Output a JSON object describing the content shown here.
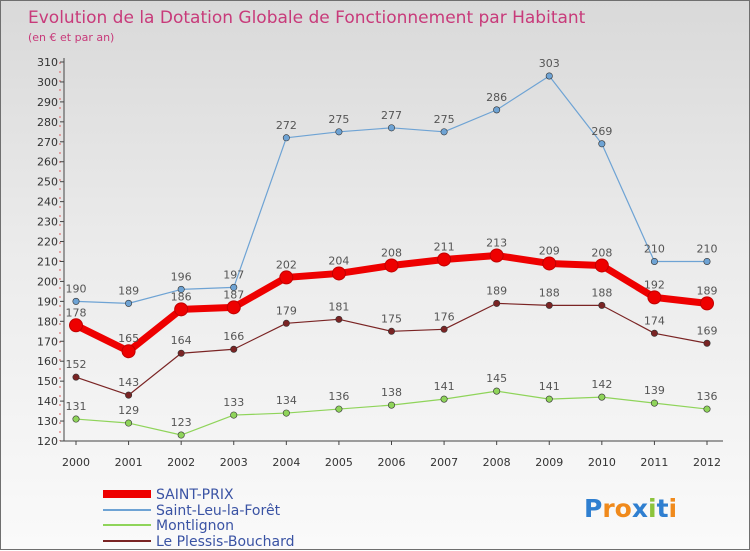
{
  "chart_data": {
    "type": "line",
    "title": "Evolution de la Dotation Globale de Fonctionnement par Habitant",
    "subtitle": "(en € et par an)",
    "xlabel": "",
    "ylabel": "",
    "ylim": [
      120,
      310
    ],
    "y_ticks": [
      120,
      130,
      140,
      150,
      160,
      170,
      180,
      190,
      200,
      210,
      220,
      230,
      240,
      250,
      260,
      270,
      280,
      290,
      300,
      310
    ],
    "grid": false,
    "legend_position": "bottom-left",
    "categories": [
      "2000",
      "2001",
      "2002",
      "2003",
      "2004",
      "2005",
      "2006",
      "2007",
      "2008",
      "2009",
      "2010",
      "2011",
      "2012"
    ],
    "series": [
      {
        "name": "SAINT-PRIX",
        "color": "#ee0000",
        "values": [
          178,
          165,
          186,
          187,
          202,
          204,
          208,
          211,
          213,
          209,
          208,
          192,
          189
        ]
      },
      {
        "name": "Saint-Leu-la-Forêt",
        "color": "#6ea3d4",
        "values": [
          190,
          189,
          196,
          197,
          272,
          275,
          277,
          275,
          286,
          303,
          269,
          210,
          210
        ]
      },
      {
        "name": "Montlignon",
        "color": "#8fd45a",
        "values": [
          131,
          129,
          123,
          133,
          134,
          136,
          138,
          141,
          145,
          141,
          142,
          139,
          136
        ]
      },
      {
        "name": "Le Plessis-Bouchard",
        "color": "#7a2424",
        "values": [
          152,
          143,
          164,
          166,
          179,
          181,
          175,
          176,
          189,
          188,
          188,
          174,
          169
        ]
      }
    ]
  },
  "logo": {
    "letters": [
      "P",
      "r",
      "o",
      "x",
      "i",
      "t",
      "i"
    ],
    "colors": [
      "#2f7fd0",
      "#f08a1c",
      "#f08a1c",
      "#2f7fd0",
      "#8cc43c",
      "#2f7fd0",
      "#f08a1c"
    ]
  }
}
